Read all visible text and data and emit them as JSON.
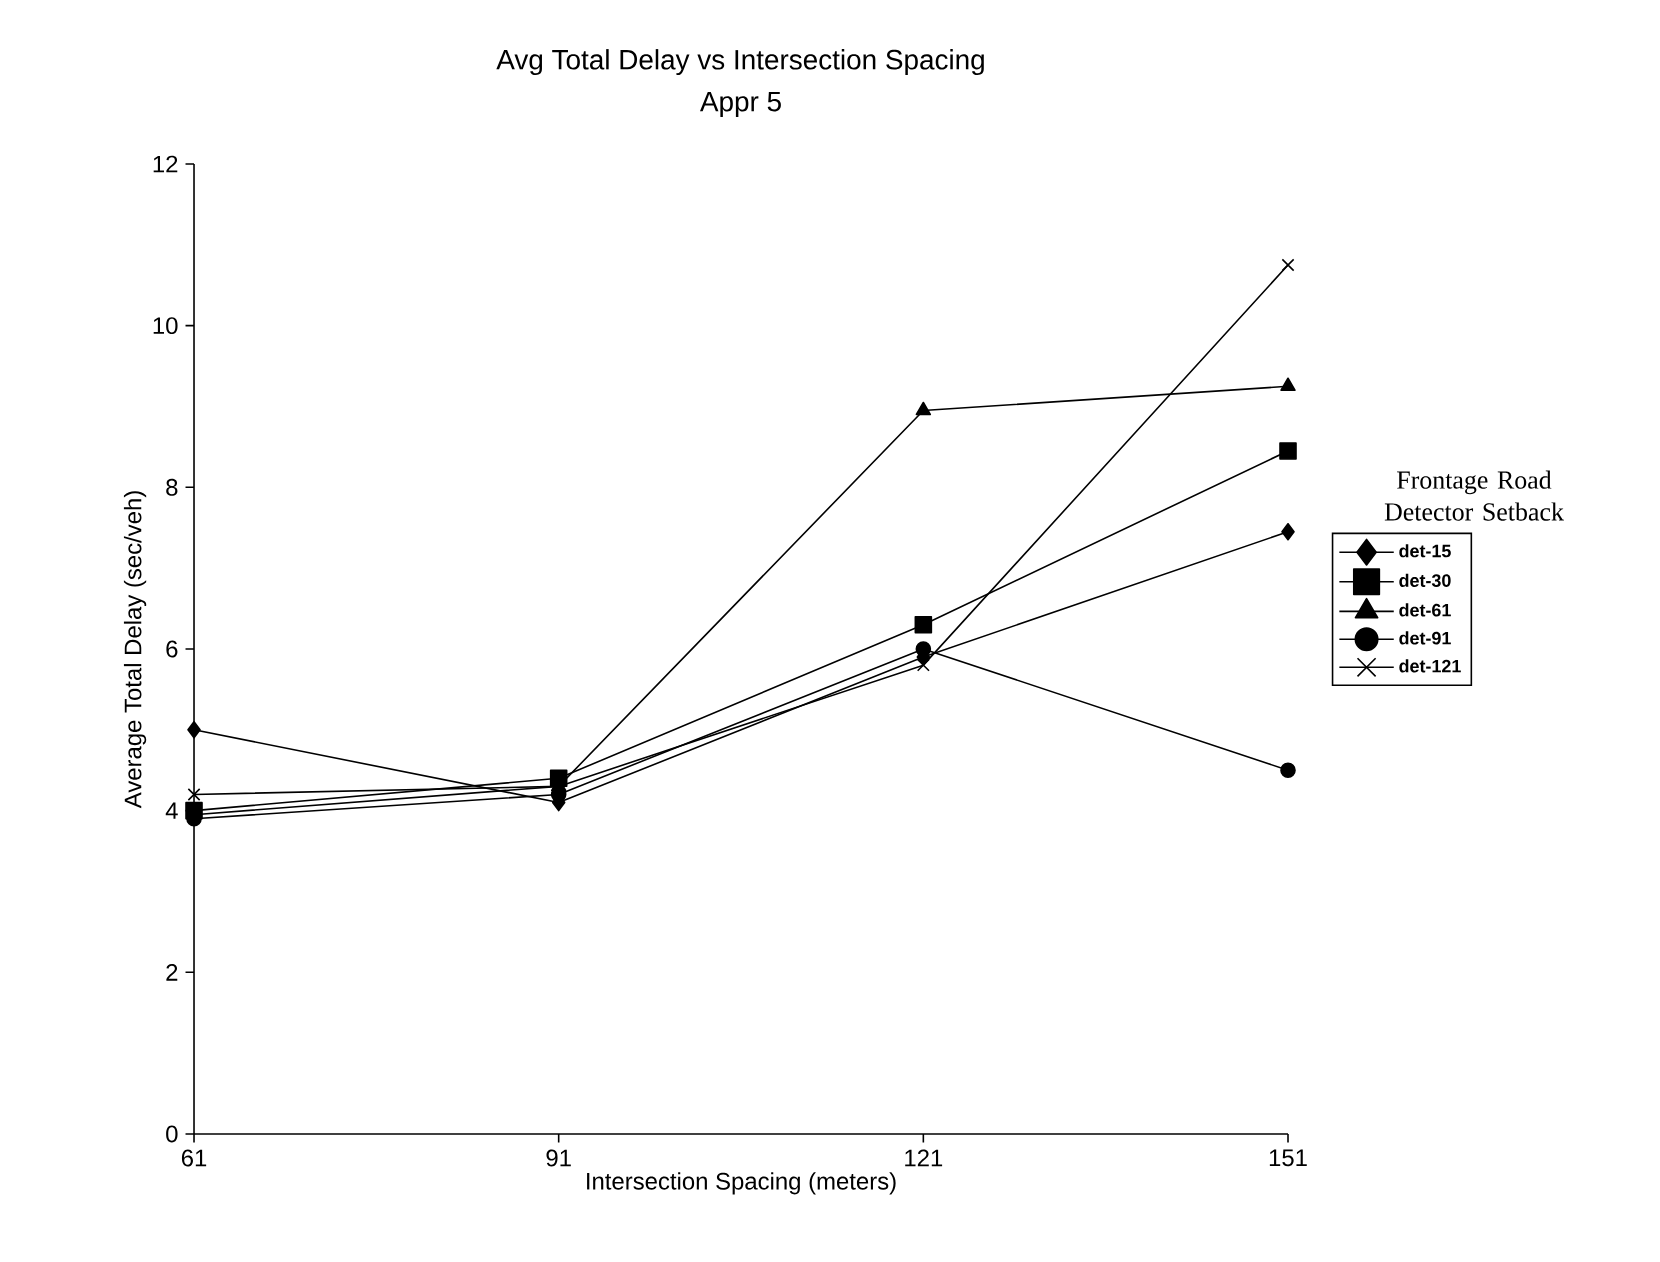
{
  "chart_data": {
    "type": "line",
    "title": "Avg Total Delay vs Intersection Spacing",
    "subtitle": "Appr 5",
    "xlabel": "Intersection Spacing (meters)",
    "ylabel": "Average Total Delay (sec/veh)",
    "legend_title": "Frontage Road Detector Setback",
    "x": [
      61,
      91,
      121,
      151
    ],
    "xlim": [
      61,
      151
    ],
    "xticks": [
      61,
      91,
      121,
      151
    ],
    "ylim": [
      0,
      12
    ],
    "yticks": [
      0,
      2,
      4,
      6,
      8,
      10,
      12
    ],
    "grid": false,
    "legend": "right",
    "line_style": "solid",
    "series": [
      {
        "name": "det-15",
        "color": "#000000",
        "marker": "diamond",
        "values": [
          5.0,
          4.1,
          5.9,
          7.45
        ]
      },
      {
        "name": "det-30",
        "color": "#000000",
        "marker": "square",
        "values": [
          4.0,
          4.4,
          6.3,
          8.45
        ]
      },
      {
        "name": "det-61",
        "color": "#000000",
        "marker": "triangle",
        "values": [
          3.95,
          4.3,
          8.95,
          9.25
        ]
      },
      {
        "name": "det-91",
        "color": "#000000",
        "marker": "circle",
        "values": [
          3.9,
          4.2,
          6.0,
          4.5
        ]
      },
      {
        "name": "det-121",
        "color": "#000000",
        "marker": "cross",
        "values": [
          4.2,
          4.3,
          5.8,
          10.75
        ]
      }
    ]
  }
}
